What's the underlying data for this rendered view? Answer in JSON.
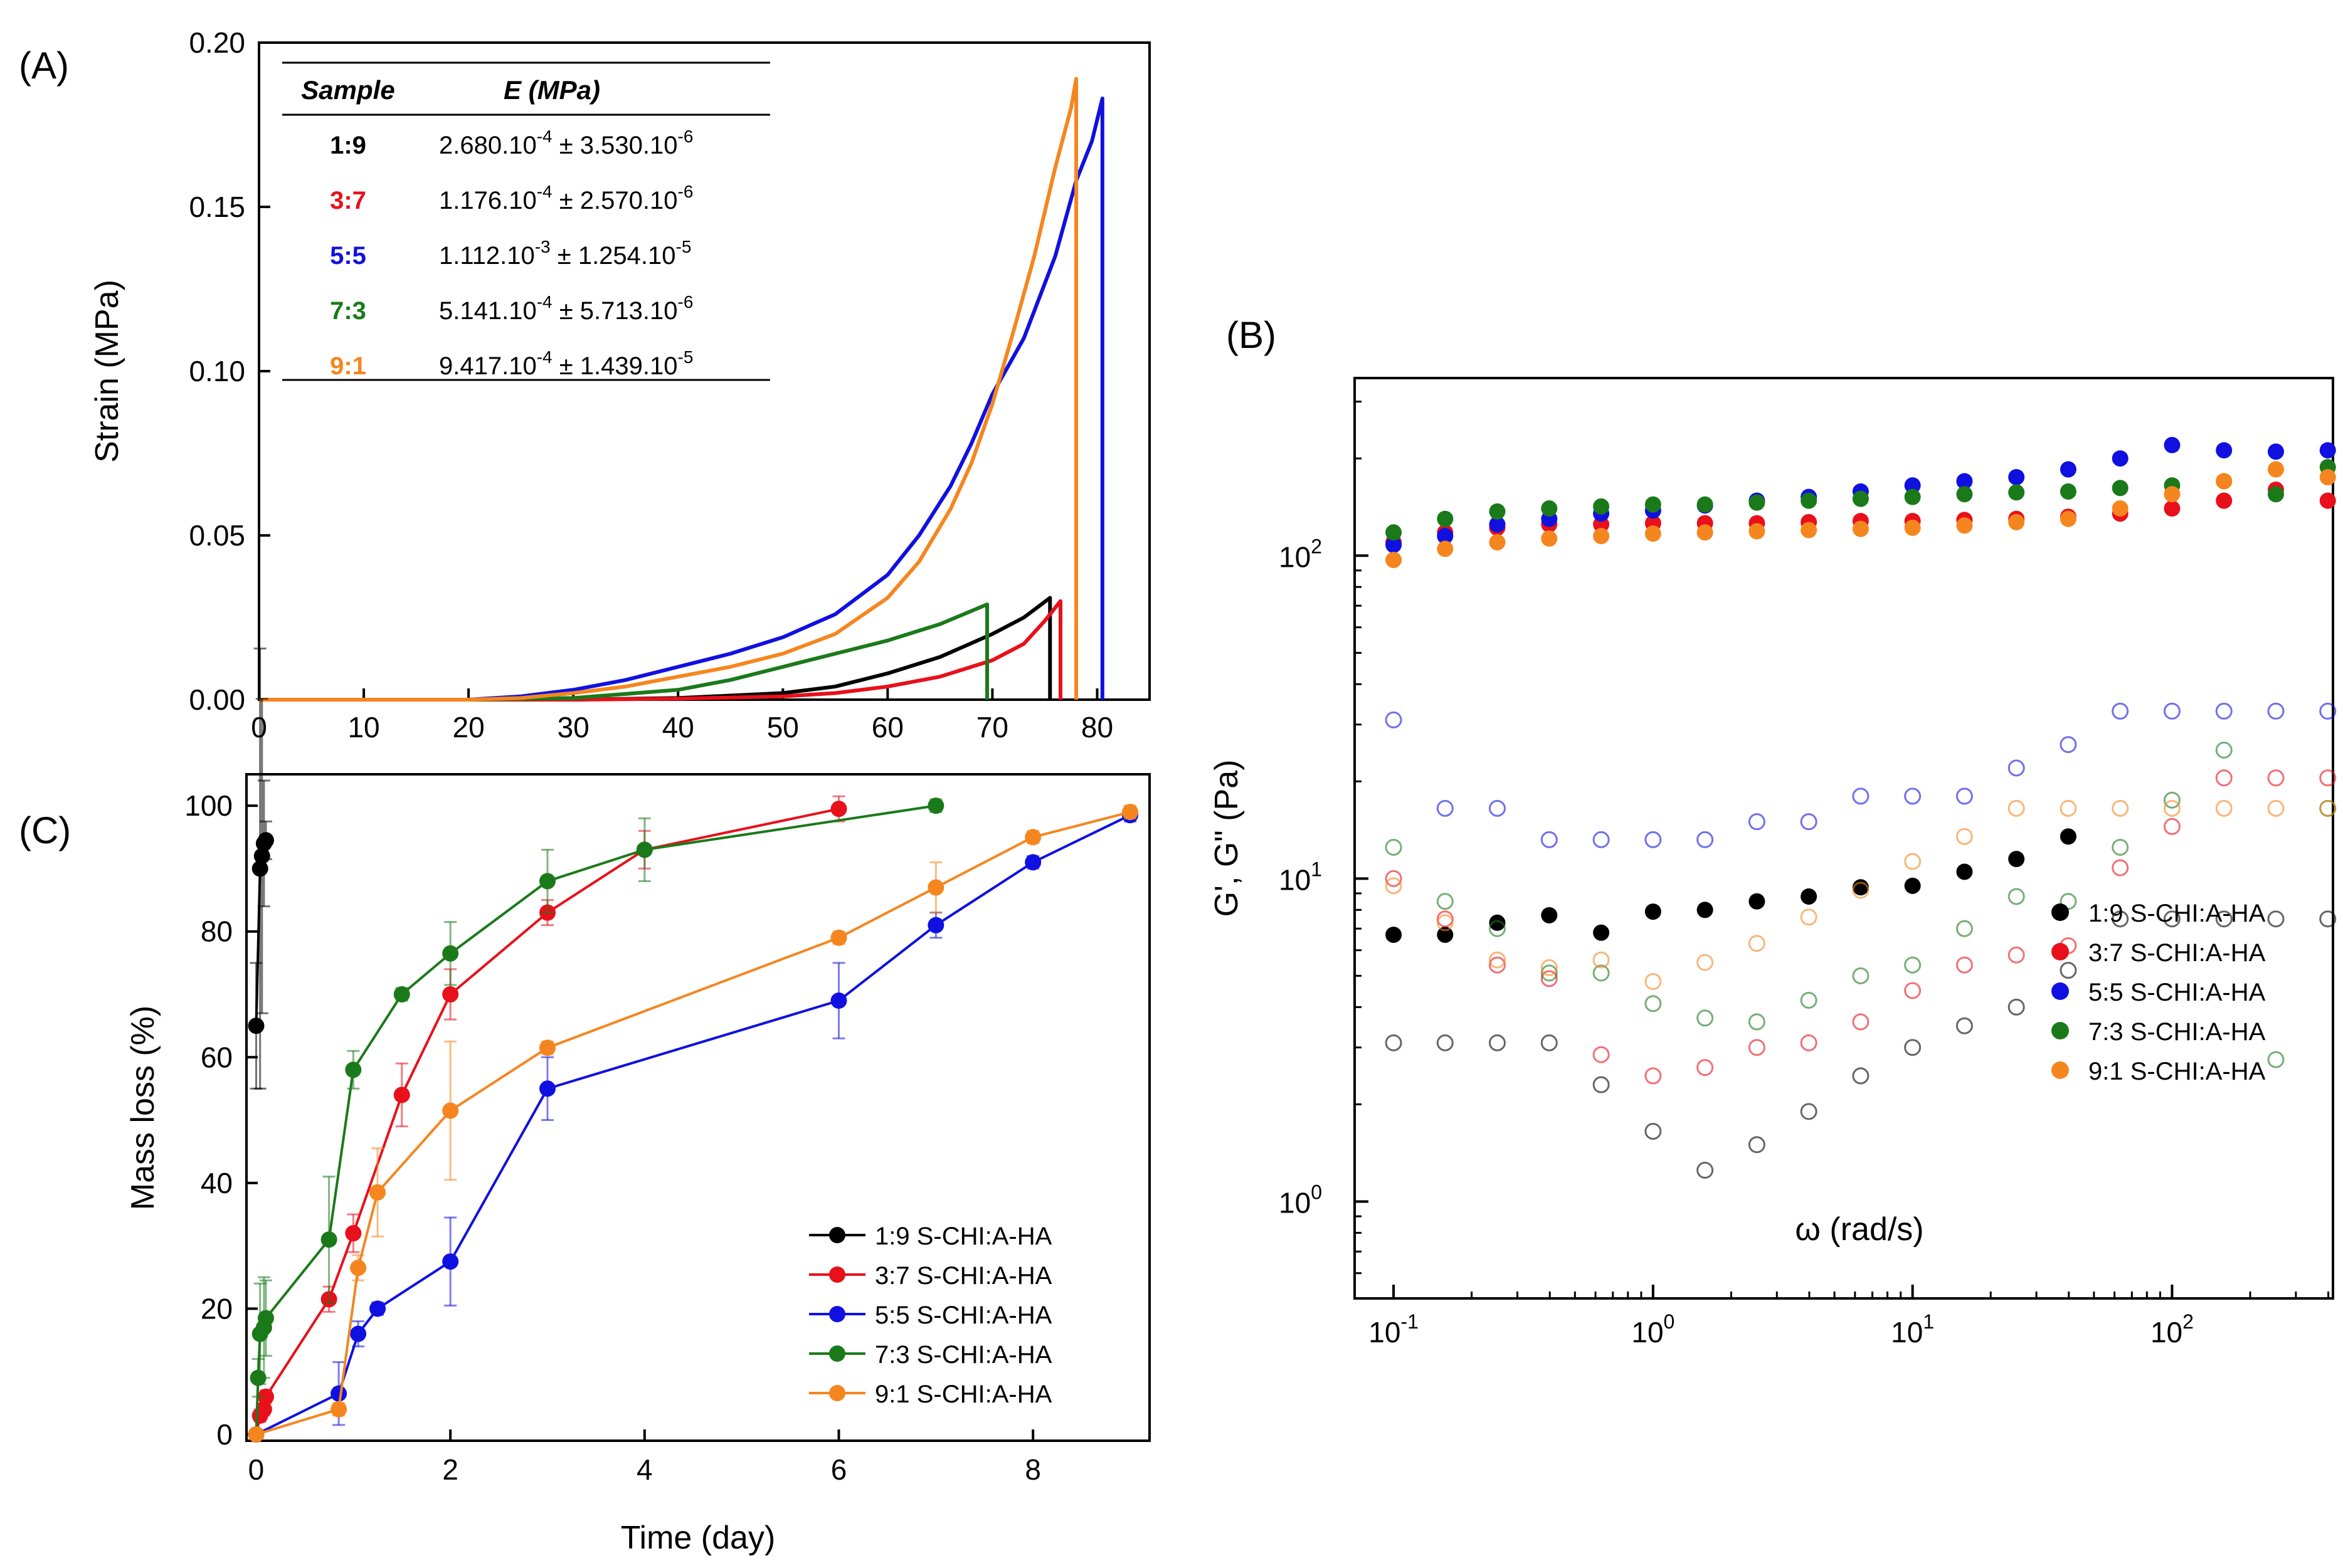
{
  "figure": {
    "panel_labels": [
      "(A)",
      "(B)",
      "(C)"
    ]
  },
  "chart_data": [
    {
      "id": "A",
      "type": "line",
      "title": "",
      "xlabel": "",
      "ylabel": "Strain (MPa)",
      "xlim": [
        0,
        85
      ],
      "ylim": [
        0,
        0.2
      ],
      "xticks": [
        "0",
        "10",
        "20",
        "30",
        "40",
        "50",
        "60",
        "70",
        "80"
      ],
      "yticks": [
        "0.00",
        "0.05",
        "0.10",
        "0.15",
        "0.20"
      ],
      "series": [
        {
          "name": "1:9",
          "color": "#000000",
          "x": [
            0,
            20,
            30,
            40,
            50,
            55,
            60,
            65,
            70,
            73,
            75.5,
            75.5
          ],
          "y": [
            0,
            0,
            0,
            0.0005,
            0.002,
            0.004,
            0.008,
            0.013,
            0.02,
            0.025,
            0.031,
            0
          ]
        },
        {
          "name": "3:7",
          "color": "#e8101a",
          "x": [
            0,
            20,
            30,
            40,
            50,
            55,
            60,
            65,
            70,
            73,
            75,
            76.5,
            76.5
          ],
          "y": [
            0,
            0,
            0,
            0.0003,
            0.001,
            0.002,
            0.004,
            0.007,
            0.012,
            0.017,
            0.024,
            0.03,
            0
          ]
        },
        {
          "name": "5:5",
          "color": "#1010e0",
          "x": [
            0,
            20,
            25,
            30,
            35,
            40,
            45,
            50,
            55,
            60,
            63,
            66,
            68,
            70,
            73,
            76,
            78,
            79.5,
            80.5,
            80.5
          ],
          "y": [
            0,
            0,
            0.001,
            0.003,
            0.006,
            0.01,
            0.014,
            0.019,
            0.026,
            0.038,
            0.05,
            0.065,
            0.078,
            0.093,
            0.11,
            0.135,
            0.158,
            0.17,
            0.183,
            0
          ]
        },
        {
          "name": "7:3",
          "color": "#1a7a1a",
          "x": [
            0,
            20,
            30,
            40,
            45,
            50,
            55,
            60,
            65,
            69.5,
            69.5
          ],
          "y": [
            0,
            0,
            0.0005,
            0.003,
            0.006,
            0.01,
            0.014,
            0.018,
            0.023,
            0.029,
            0
          ]
        },
        {
          "name": "9:1",
          "color": "#f5861f",
          "x": [
            0,
            20,
            25,
            30,
            35,
            40,
            45,
            50,
            55,
            60,
            63,
            66,
            68,
            70,
            72,
            74,
            76,
            77.5,
            78,
            78
          ],
          "y": [
            0,
            0,
            0.0005,
            0.002,
            0.004,
            0.007,
            0.01,
            0.014,
            0.02,
            0.031,
            0.042,
            0.058,
            0.072,
            0.09,
            0.112,
            0.135,
            0.162,
            0.18,
            0.189,
            0
          ]
        }
      ],
      "inset_table": {
        "headers": [
          "Sample",
          "E (MPa)"
        ],
        "rows": [
          {
            "sample": "1:9",
            "color": "#000000",
            "value": "2.680.10",
            "exp1": "-4",
            "mid": " ± 3.530.10",
            "exp2": "-6"
          },
          {
            "sample": "3:7",
            "color": "#e8101a",
            "value": "1.176.10",
            "exp1": "-4",
            "mid": " ± 2.570.10",
            "exp2": "-6"
          },
          {
            "sample": "5:5",
            "color": "#1010e0",
            "value": "1.112.10",
            "exp1": "-3",
            "mid": " ± 1.254.10",
            "exp2": "-5"
          },
          {
            "sample": "7:3",
            "color": "#1a7a1a",
            "value": "5.141.10",
            "exp1": "-4",
            "mid": " ± 5.713.10",
            "exp2": "-6"
          },
          {
            "sample": "9:1",
            "color": "#f5861f",
            "value": "9.417.10",
            "exp1": "-4",
            "mid": " ± 1.439.10",
            "exp2": "-5"
          }
        ]
      }
    },
    {
      "id": "B",
      "type": "scatter",
      "title": "",
      "xlabel": "ω (rad/s)",
      "ylabel": "G', G\" (Pa)",
      "xscale": "log",
      "yscale": "log",
      "xlim_log10": [
        -1.15,
        2.62
      ],
      "ylim_log10": [
        -0.3,
        2.55
      ],
      "xticks": [
        {
          "base": "10",
          "exp": "-1"
        },
        {
          "base": "10",
          "exp": "0"
        },
        {
          "base": "10",
          "exp": "1"
        },
        {
          "base": "10",
          "exp": "2"
        }
      ],
      "yticks": [
        {
          "base": "10",
          "exp": "0"
        },
        {
          "base": "10",
          "exp": "1"
        },
        {
          "base": "10",
          "exp": "2"
        }
      ],
      "legend_position": "lower-right",
      "omega": [
        0.1,
        0.158,
        0.251,
        0.398,
        0.631,
        1,
        1.585,
        2.512,
        3.981,
        6.31,
        10,
        15.85,
        25.12,
        39.81,
        63.1,
        100,
        158.5,
        251.2,
        398.1
      ],
      "series": [
        {
          "name": "1:9 S-CHI:A-HA",
          "color": "#000000",
          "G1": [
            null,
            null,
            null,
            null,
            null,
            null,
            null,
            null,
            null,
            null,
            null,
            null,
            null,
            null,
            null,
            null,
            null,
            null,
            null
          ],
          "G2": [
            3.1,
            3.1,
            3.1,
            3.1,
            2.3,
            1.65,
            1.25,
            1.5,
            1.9,
            2.45,
            3.0,
            3.5,
            4.0,
            5.2,
            7.5,
            7.5,
            7.5,
            7.5,
            7.5
          ],
          "G2f": [
            6.7,
            6.7,
            7.3,
            7.7,
            6.8,
            7.9,
            8.0,
            8.5,
            8.8,
            9.4,
            9.5,
            10.5,
            11.5,
            13.5,
            null,
            null,
            null,
            null,
            null
          ]
        },
        {
          "name": "3:7 S-CHI:A-HA",
          "color": "#e8101a",
          "G1": [
            110,
            118,
            122,
            125,
            125,
            126,
            126,
            126,
            127,
            128,
            128,
            129,
            130,
            132,
            135,
            140,
            148,
            160,
            148
          ],
          "G2": [
            10.0,
            7.5,
            5.4,
            4.9,
            2.85,
            2.45,
            2.6,
            3.0,
            3.1,
            3.6,
            4.5,
            5.4,
            5.8,
            6.2,
            10.8,
            14.5,
            20.5,
            20.5,
            20.5
          ]
        },
        {
          "name": "5:5 S-CHI:A-HA",
          "color": "#1010e0",
          "G1": [
            108,
            115,
            125,
            130,
            135,
            138,
            143,
            148,
            152,
            158,
            165,
            170,
            175,
            185,
            200,
            220,
            212,
            210,
            212
          ],
          "G2": [
            31,
            16.5,
            16.5,
            13.2,
            13.2,
            13.2,
            13.2,
            15.0,
            15.0,
            18.0,
            18.0,
            18.0,
            22.0,
            26.0,
            33,
            33,
            33,
            33,
            33
          ]
        },
        {
          "name": "7:3 S-CHI:A-HA",
          "color": "#1a7a1a",
          "G1": [
            118,
            130,
            137,
            140,
            142,
            144,
            144,
            146,
            148,
            150,
            152,
            155,
            157,
            158,
            162,
            165,
            170,
            155,
            188
          ],
          "G2": [
            12.5,
            8.5,
            7.0,
            5.1,
            5.1,
            4.1,
            3.7,
            3.6,
            4.2,
            5.0,
            5.4,
            7.0,
            8.8,
            8.5,
            12.5,
            17.5,
            25,
            2.75,
            16.5
          ]
        },
        {
          "name": "9:1 S-CHI:A-HA",
          "color": "#f5861f",
          "G1": [
            97,
            105,
            110,
            113,
            115,
            117,
            118,
            119,
            120,
            121,
            122,
            124,
            127,
            130,
            140,
            155,
            170,
            185,
            175
          ],
          "G2": [
            9.5,
            7.3,
            5.6,
            5.3,
            5.6,
            4.8,
            5.5,
            6.3,
            7.6,
            9.2,
            11.3,
            13.5,
            16.5,
            16.5,
            16.5,
            16.5,
            16.5,
            16.5,
            16.5
          ]
        }
      ]
    },
    {
      "id": "C",
      "type": "line",
      "title": "",
      "xlabel": "Time (day)",
      "ylabel": "Mass loss (%)",
      "xlim": [
        -0.1,
        9.2
      ],
      "ylim": [
        -1,
        105
      ],
      "xticks": [
        "0",
        "2",
        "4",
        "6",
        "8"
      ],
      "yticks": [
        "0",
        "20",
        "40",
        "60",
        "80",
        "100"
      ],
      "legend_position": "lower-right",
      "series": [
        {
          "name": "1:9 S-CHI:A-HA",
          "color": "#000000",
          "x": [
            0.0,
            0.04,
            0.06,
            0.08,
            0.1
          ],
          "y": [
            65,
            90,
            92,
            94,
            94.5
          ],
          "err": [
            10,
            35,
            25,
            10,
            3
          ]
        },
        {
          "name": "3:7 S-CHI:A-HA",
          "color": "#e8101a",
          "x": [
            0,
            0.04,
            0.08,
            0.1,
            0.75,
            1.0,
            1.5,
            2.0,
            3.0,
            4.0,
            6.0
          ],
          "y": [
            0,
            3,
            4,
            6,
            21.5,
            32,
            54,
            70,
            83,
            93,
            99.5
          ],
          "err": [
            0,
            1,
            1,
            1,
            2,
            3,
            5,
            4,
            2,
            3,
            2
          ]
        },
        {
          "name": "5:5 S-CHI:A-HA",
          "color": "#1010e0",
          "x": [
            0,
            0.85,
            1.05,
            1.25,
            2.0,
            3.0,
            6.0,
            7.0,
            8.0,
            9.0
          ],
          "y": [
            0,
            6.5,
            16,
            20,
            27.5,
            55,
            69,
            81,
            91,
            98.5
          ],
          "err": [
            0,
            5,
            2,
            1,
            7,
            5,
            6,
            2,
            1,
            1
          ]
        },
        {
          "name": "7:3 S-CHI:A-HA",
          "color": "#1a7a1a",
          "x": [
            0,
            0.02,
            0.04,
            0.08,
            0.1,
            0.75,
            1.0,
            1.5,
            2.0,
            3.0,
            4.0,
            7.0
          ],
          "y": [
            0,
            9,
            16,
            17,
            18.5,
            31,
            58,
            70,
            76.5,
            88,
            93,
            100
          ],
          "err": [
            0,
            3,
            8,
            8,
            6,
            10,
            3,
            1,
            5,
            5,
            5,
            1
          ]
        },
        {
          "name": "9:1 S-CHI:A-HA",
          "color": "#f5861f",
          "x": [
            0,
            0.85,
            1.05,
            1.25,
            2.0,
            3.0,
            6.0,
            7.0,
            8.0,
            9.0
          ],
          "y": [
            0,
            4,
            26.5,
            38.5,
            51.5,
            61.5,
            79,
            87,
            95,
            99
          ],
          "err": [
            0,
            1,
            2,
            7,
            11,
            1,
            1,
            4,
            1,
            1
          ]
        }
      ]
    }
  ]
}
